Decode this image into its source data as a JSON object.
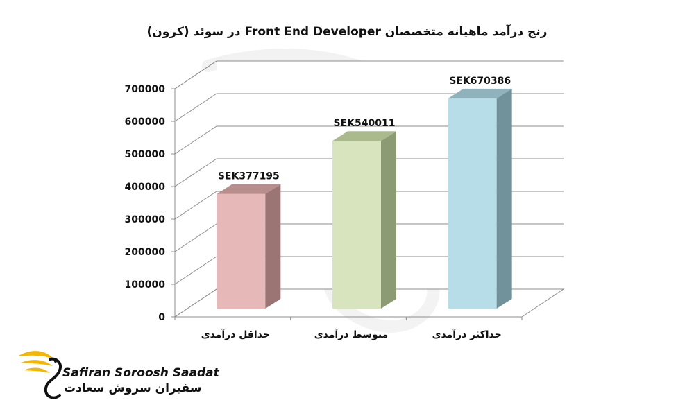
{
  "chart_data": {
    "type": "bar",
    "title": "رنج درآمد ماهیانه متخصصان Front End Developer در سوئد (کرون)",
    "categories": [
      "حداقل درآمدی",
      "متوسط درآمدی",
      "حداکثر درآمدی"
    ],
    "values": [
      377195,
      540011,
      670386
    ],
    "data_labels": [
      "SEK377195",
      "SEK540011",
      "SEK670386"
    ],
    "ylim": [
      0,
      700000
    ],
    "yticks": [
      "0",
      "100000",
      "200000",
      "300000",
      "400000",
      "500000",
      "600000",
      "700000"
    ],
    "grid": true,
    "legend": "none",
    "colors": [
      {
        "front": "#e6b9b8",
        "side": "#9b7474",
        "top": "#b88e8d"
      },
      {
        "front": "#d7e4bd",
        "side": "#8d9b74",
        "top": "#abba8c"
      },
      {
        "front": "#b7dee8",
        "side": "#72929b",
        "top": "#8fb2bc"
      }
    ]
  },
  "logo": {
    "name_en": "Safiran Soroosh Saadat",
    "name_fa": "سفیران سروش سعادت",
    "accent": "#f2b705"
  }
}
